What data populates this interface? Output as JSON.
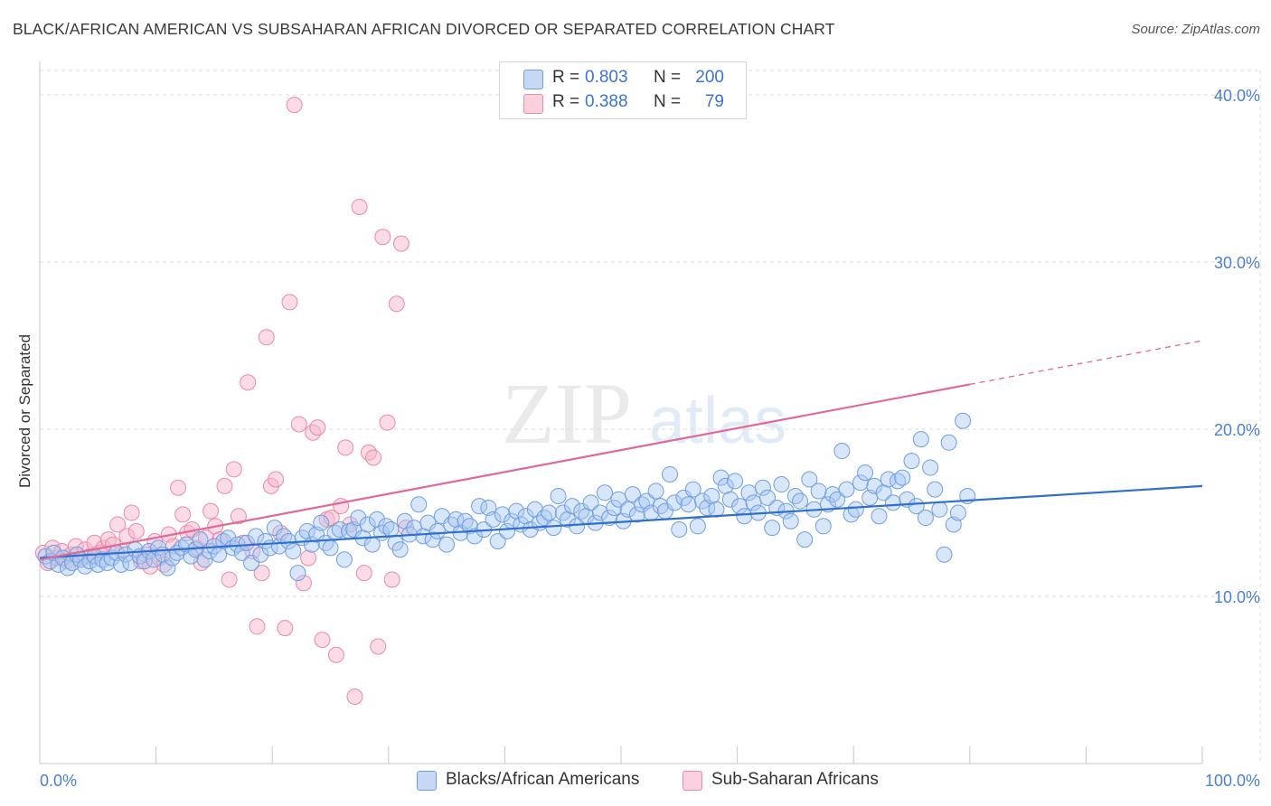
{
  "title": "BLACK/AFRICAN AMERICAN VS SUBSAHARAN AFRICAN DIVORCED OR SEPARATED CORRELATION CHART",
  "source": "Source: ZipAtlas.com",
  "watermark": "ZIPatlas",
  "legend": {
    "rows": [
      {
        "r_label": "R =",
        "r_value": "0.803",
        "n_label": "N =",
        "n_value": "200",
        "color": "#a9c8f2"
      },
      {
        "r_label": "R =",
        "r_value": "0.388",
        "n_label": "N =",
        "n_value": "79",
        "color": "#f7b7cb"
      }
    ]
  },
  "bottom_legend": [
    "Blacks/African Americans",
    "Sub-Saharan Africans"
  ],
  "colors": {
    "blue_fill": "#a9c8f2",
    "blue_stroke": "#6f9ee0",
    "blue_line": "#2f6fd0",
    "pink_fill": "#f7b7cb",
    "pink_stroke": "#ea8aa8",
    "pink_line": "#e0689a",
    "tick_text": "#4a7fd4",
    "grid": "#dddddd"
  },
  "chart_data": {
    "type": "scatter",
    "ylabel": "Divorced or Separated",
    "xlabel": "",
    "xlim": [
      0,
      100
    ],
    "ylim": [
      0,
      42
    ],
    "x_tick_labels": [
      "0.0%",
      "100.0%"
    ],
    "y_ticks": [
      10,
      20,
      30,
      40
    ],
    "y_tick_labels": [
      "10.0%",
      "20.0%",
      "30.0%",
      "40.0%"
    ],
    "grid": "horizontal dashed",
    "legend_position": "top-center",
    "series": [
      {
        "name": "Blacks/African Americans",
        "r": 0.803,
        "n": 200,
        "trend": {
          "x": [
            0,
            100
          ],
          "y": [
            12.3,
            16.6
          ],
          "dashed_from": null
        },
        "points": [
          [
            0.5,
            12.4
          ],
          [
            0.9,
            12.1
          ],
          [
            1.2,
            12.6
          ],
          [
            1.6,
            11.9
          ],
          [
            2.0,
            12.3
          ],
          [
            2.4,
            11.7
          ],
          [
            2.8,
            12.0
          ],
          [
            3.2,
            12.5
          ],
          [
            3.5,
            12.2
          ],
          [
            3.9,
            11.8
          ],
          [
            4.3,
            12.1
          ],
          [
            4.7,
            12.4
          ],
          [
            5.0,
            11.9
          ],
          [
            5.4,
            12.2
          ],
          [
            5.8,
            12.0
          ],
          [
            6.2,
            12.3
          ],
          [
            6.6,
            12.6
          ],
          [
            7.0,
            11.9
          ],
          [
            7.4,
            12.5
          ],
          [
            7.8,
            12.0
          ],
          [
            8.2,
            12.8
          ],
          [
            8.6,
            12.4
          ],
          [
            9.0,
            12.1
          ],
          [
            9.4,
            12.7
          ],
          [
            9.8,
            12.2
          ],
          [
            10.2,
            12.9
          ],
          [
            10.6,
            12.5
          ],
          [
            11.0,
            11.7
          ],
          [
            11.4,
            12.3
          ],
          [
            11.8,
            12.6
          ],
          [
            12.2,
            12.9
          ],
          [
            12.6,
            13.1
          ],
          [
            13.0,
            12.4
          ],
          [
            13.4,
            12.8
          ],
          [
            13.8,
            13.4
          ],
          [
            14.2,
            12.2
          ],
          [
            14.6,
            12.7
          ],
          [
            15.0,
            13.0
          ],
          [
            15.4,
            12.5
          ],
          [
            15.8,
            13.3
          ],
          [
            16.2,
            13.5
          ],
          [
            16.6,
            12.9
          ],
          [
            17.0,
            13.1
          ],
          [
            17.4,
            12.6
          ],
          [
            17.8,
            13.2
          ],
          [
            18.2,
            12.0
          ],
          [
            18.6,
            13.6
          ],
          [
            19.0,
            12.5
          ],
          [
            19.4,
            13.3
          ],
          [
            19.8,
            12.9
          ],
          [
            20.2,
            14.1
          ],
          [
            20.6,
            13.0
          ],
          [
            21.0,
            13.6
          ],
          [
            21.4,
            13.3
          ],
          [
            21.8,
            12.7
          ],
          [
            22.2,
            11.4
          ],
          [
            22.6,
            13.5
          ],
          [
            23.0,
            13.9
          ],
          [
            23.4,
            13.1
          ],
          [
            23.8,
            13.7
          ],
          [
            24.2,
            14.4
          ],
          [
            24.6,
            13.2
          ],
          [
            25.0,
            12.9
          ],
          [
            25.4,
            13.8
          ],
          [
            25.8,
            14.0
          ],
          [
            26.2,
            12.2
          ],
          [
            26.6,
            13.9
          ],
          [
            27.0,
            14.0
          ],
          [
            27.4,
            14.7
          ],
          [
            27.8,
            13.5
          ],
          [
            28.2,
            14.3
          ],
          [
            28.6,
            13.1
          ],
          [
            29.0,
            14.6
          ],
          [
            29.4,
            13.8
          ],
          [
            29.8,
            14.2
          ],
          [
            30.2,
            14.0
          ],
          [
            30.6,
            13.2
          ],
          [
            31.0,
            12.8
          ],
          [
            31.4,
            14.5
          ],
          [
            31.8,
            13.7
          ],
          [
            32.2,
            14.1
          ],
          [
            32.6,
            15.5
          ],
          [
            33.0,
            13.6
          ],
          [
            33.4,
            14.4
          ],
          [
            33.8,
            13.4
          ],
          [
            34.2,
            13.9
          ],
          [
            34.6,
            14.8
          ],
          [
            35.0,
            13.1
          ],
          [
            35.4,
            14.3
          ],
          [
            35.8,
            14.6
          ],
          [
            36.2,
            13.8
          ],
          [
            36.6,
            14.5
          ],
          [
            37.0,
            14.2
          ],
          [
            37.4,
            13.6
          ],
          [
            37.8,
            15.4
          ],
          [
            38.2,
            14.0
          ],
          [
            38.6,
            15.3
          ],
          [
            39.0,
            14.6
          ],
          [
            39.4,
            13.3
          ],
          [
            39.8,
            14.9
          ],
          [
            40.2,
            13.9
          ],
          [
            40.6,
            14.5
          ],
          [
            41.0,
            15.1
          ],
          [
            41.4,
            14.3
          ],
          [
            41.8,
            14.8
          ],
          [
            42.2,
            14.0
          ],
          [
            42.6,
            15.2
          ],
          [
            43.0,
            14.4
          ],
          [
            43.4,
            14.7
          ],
          [
            43.8,
            15.0
          ],
          [
            44.2,
            14.1
          ],
          [
            44.6,
            16.0
          ],
          [
            45.0,
            15.0
          ],
          [
            45.4,
            14.6
          ],
          [
            45.8,
            15.4
          ],
          [
            46.2,
            14.2
          ],
          [
            46.6,
            15.1
          ],
          [
            47.0,
            14.8
          ],
          [
            47.4,
            15.6
          ],
          [
            47.8,
            14.4
          ],
          [
            48.2,
            15.0
          ],
          [
            48.6,
            16.2
          ],
          [
            49.0,
            14.7
          ],
          [
            49.4,
            15.3
          ],
          [
            49.8,
            15.8
          ],
          [
            50.2,
            14.5
          ],
          [
            50.6,
            15.2
          ],
          [
            51.0,
            16.1
          ],
          [
            51.4,
            14.9
          ],
          [
            51.8,
            15.5
          ],
          [
            52.2,
            15.7
          ],
          [
            52.6,
            15.0
          ],
          [
            53.0,
            16.3
          ],
          [
            53.4,
            15.4
          ],
          [
            53.8,
            15.1
          ],
          [
            54.2,
            17.3
          ],
          [
            54.6,
            15.6
          ],
          [
            55.0,
            14.0
          ],
          [
            55.4,
            15.9
          ],
          [
            55.8,
            15.5
          ],
          [
            56.2,
            16.4
          ],
          [
            56.6,
            14.2
          ],
          [
            57.0,
            15.7
          ],
          [
            57.4,
            15.3
          ],
          [
            57.8,
            16.0
          ],
          [
            58.2,
            15.2
          ],
          [
            58.6,
            17.1
          ],
          [
            59.0,
            16.6
          ],
          [
            59.4,
            15.8
          ],
          [
            59.8,
            16.9
          ],
          [
            60.2,
            15.4
          ],
          [
            60.6,
            14.8
          ],
          [
            61.0,
            16.2
          ],
          [
            61.4,
            15.6
          ],
          [
            61.8,
            15.0
          ],
          [
            62.2,
            16.5
          ],
          [
            62.6,
            15.9
          ],
          [
            63.0,
            14.1
          ],
          [
            63.4,
            15.3
          ],
          [
            63.8,
            16.7
          ],
          [
            64.2,
            15.1
          ],
          [
            64.6,
            14.5
          ],
          [
            65.0,
            16.0
          ],
          [
            65.4,
            15.7
          ],
          [
            65.8,
            13.4
          ],
          [
            66.2,
            17.0
          ],
          [
            66.6,
            15.2
          ],
          [
            67.0,
            16.3
          ],
          [
            67.4,
            14.2
          ],
          [
            67.8,
            15.5
          ],
          [
            68.2,
            16.1
          ],
          [
            68.6,
            15.8
          ],
          [
            69.0,
            18.7
          ],
          [
            69.4,
            16.4
          ],
          [
            69.8,
            14.9
          ],
          [
            70.2,
            15.2
          ],
          [
            70.6,
            16.8
          ],
          [
            71.0,
            17.4
          ],
          [
            71.4,
            15.9
          ],
          [
            71.8,
            16.6
          ],
          [
            72.2,
            14.8
          ],
          [
            72.6,
            16.2
          ],
          [
            73.0,
            17.0
          ],
          [
            73.4,
            15.6
          ],
          [
            73.8,
            16.9
          ],
          [
            74.2,
            17.1
          ],
          [
            74.6,
            15.8
          ],
          [
            75.0,
            18.1
          ],
          [
            75.4,
            15.4
          ],
          [
            75.8,
            19.4
          ],
          [
            76.2,
            14.7
          ],
          [
            76.6,
            17.7
          ],
          [
            77.0,
            16.4
          ],
          [
            77.4,
            15.2
          ],
          [
            77.8,
            12.5
          ],
          [
            78.2,
            19.2
          ],
          [
            78.6,
            14.3
          ],
          [
            79.0,
            15.0
          ],
          [
            79.4,
            20.5
          ],
          [
            79.8,
            16.0
          ]
        ]
      },
      {
        "name": "Sub-Saharan Africans",
        "r": 0.388,
        "n": 79,
        "trend": {
          "x": [
            0,
            100
          ],
          "y": [
            12.2,
            25.3
          ],
          "dashed_from": 80
        },
        "points": [
          [
            0.3,
            12.6
          ],
          [
            0.7,
            12.0
          ],
          [
            1.1,
            12.9
          ],
          [
            1.5,
            12.3
          ],
          [
            1.9,
            12.7
          ],
          [
            2.3,
            12.1
          ],
          [
            2.7,
            12.5
          ],
          [
            3.1,
            13.0
          ],
          [
            3.5,
            12.2
          ],
          [
            3.9,
            12.8
          ],
          [
            4.3,
            12.4
          ],
          [
            4.7,
            13.2
          ],
          [
            5.1,
            12.6
          ],
          [
            5.5,
            12.9
          ],
          [
            5.9,
            13.4
          ],
          [
            6.3,
            13.1
          ],
          [
            6.7,
            14.3
          ],
          [
            7.1,
            12.7
          ],
          [
            7.5,
            13.6
          ],
          [
            7.9,
            15.0
          ],
          [
            8.3,
            13.9
          ],
          [
            8.7,
            12.1
          ],
          [
            9.1,
            12.5
          ],
          [
            9.5,
            11.8
          ],
          [
            9.9,
            13.3
          ],
          [
            10.3,
            12.3
          ],
          [
            10.7,
            11.9
          ],
          [
            11.1,
            13.7
          ],
          [
            11.5,
            13.0
          ],
          [
            11.9,
            16.5
          ],
          [
            12.3,
            14.9
          ],
          [
            12.7,
            13.8
          ],
          [
            13.1,
            14.0
          ],
          [
            13.5,
            12.9
          ],
          [
            13.9,
            12.0
          ],
          [
            14.3,
            13.5
          ],
          [
            14.7,
            15.1
          ],
          [
            15.1,
            14.2
          ],
          [
            15.5,
            13.4
          ],
          [
            15.9,
            16.6
          ],
          [
            16.3,
            11.0
          ],
          [
            16.7,
            17.6
          ],
          [
            17.1,
            14.8
          ],
          [
            17.5,
            13.2
          ],
          [
            17.9,
            22.8
          ],
          [
            18.3,
            12.7
          ],
          [
            18.7,
            8.2
          ],
          [
            19.1,
            11.4
          ],
          [
            19.5,
            25.5
          ],
          [
            19.9,
            16.6
          ],
          [
            20.3,
            17.0
          ],
          [
            20.7,
            13.8
          ],
          [
            21.1,
            8.1
          ],
          [
            21.5,
            27.6
          ],
          [
            21.9,
            39.4
          ],
          [
            22.3,
            20.3
          ],
          [
            22.7,
            10.8
          ],
          [
            23.1,
            12.3
          ],
          [
            23.5,
            19.8
          ],
          [
            23.9,
            20.1
          ],
          [
            24.3,
            7.4
          ],
          [
            24.7,
            14.6
          ],
          [
            25.1,
            14.7
          ],
          [
            25.5,
            6.5
          ],
          [
            25.9,
            15.4
          ],
          [
            26.3,
            18.9
          ],
          [
            26.7,
            14.3
          ],
          [
            27.1,
            4.0
          ],
          [
            27.5,
            33.3
          ],
          [
            27.9,
            11.4
          ],
          [
            28.3,
            18.6
          ],
          [
            28.7,
            18.3
          ],
          [
            29.1,
            7.0
          ],
          [
            29.5,
            31.5
          ],
          [
            29.9,
            20.4
          ],
          [
            30.3,
            11.0
          ],
          [
            30.7,
            27.5
          ],
          [
            31.1,
            31.1
          ],
          [
            31.5,
            14.1
          ]
        ]
      }
    ]
  }
}
